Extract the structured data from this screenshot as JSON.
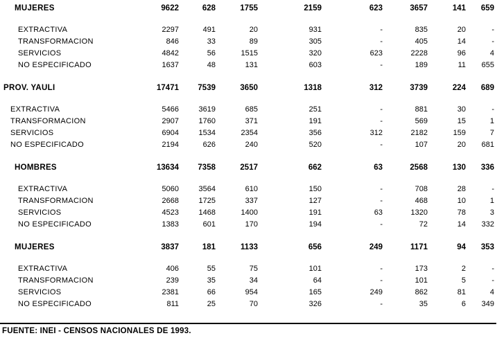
{
  "table": {
    "sections": [
      {
        "level": "gender",
        "header": {
          "label": "MUJERES",
          "values": [
            "9622",
            "628",
            "1755",
            "2159",
            "623",
            "3657",
            "141",
            "659"
          ]
        },
        "rows": [
          {
            "label": "EXTRACTIVA",
            "values": [
              "2297",
              "491",
              "20",
              "931",
              "-",
              "835",
              "20",
              "-"
            ]
          },
          {
            "label": "TRANSFORMACION",
            "values": [
              "846",
              "33",
              "89",
              "305",
              "-",
              "405",
              "14",
              "-"
            ]
          },
          {
            "label": "SERVICIOS",
            "values": [
              "4842",
              "56",
              "1515",
              "320",
              "623",
              "2228",
              "96",
              "4"
            ]
          },
          {
            "label": "NO ESPECIFICADO",
            "values": [
              "1637",
              "48",
              "131",
              "603",
              "-",
              "189",
              "11",
              "655"
            ]
          }
        ]
      },
      {
        "level": "province",
        "header": {
          "label": "PROV. YAULI",
          "values": [
            "17471",
            "7539",
            "3650",
            "1318",
            "312",
            "3739",
            "224",
            "689"
          ]
        },
        "rows": [
          {
            "label": "EXTRACTIVA",
            "values": [
              "5466",
              "3619",
              "685",
              "251",
              "-",
              "881",
              "30",
              "-"
            ]
          },
          {
            "label": "TRANSFORMACION",
            "values": [
              "2907",
              "1760",
              "371",
              "191",
              "-",
              "569",
              "15",
              "1"
            ]
          },
          {
            "label": "SERVICIOS",
            "values": [
              "6904",
              "1534",
              "2354",
              "356",
              "312",
              "2182",
              "159",
              "7"
            ]
          },
          {
            "label": "NO ESPECIFICADO",
            "values": [
              "2194",
              "626",
              "240",
              "520",
              "-",
              "107",
              "20",
              "681"
            ]
          }
        ]
      },
      {
        "level": "gender",
        "header": {
          "label": "HOMBRES",
          "values": [
            "13634",
            "7358",
            "2517",
            "662",
            "63",
            "2568",
            "130",
            "336"
          ]
        },
        "rows": [
          {
            "label": "EXTRACTIVA",
            "values": [
              "5060",
              "3564",
              "610",
              "150",
              "-",
              "708",
              "28",
              "-"
            ]
          },
          {
            "label": "TRANSFORMACION",
            "values": [
              "2668",
              "1725",
              "337",
              "127",
              "-",
              "468",
              "10",
              "1"
            ]
          },
          {
            "label": "SERVICIOS",
            "values": [
              "4523",
              "1468",
              "1400",
              "191",
              "63",
              "1320",
              "78",
              "3"
            ]
          },
          {
            "label": "NO ESPECIFICADO",
            "values": [
              "1383",
              "601",
              "170",
              "194",
              "-",
              "72",
              "14",
              "332"
            ]
          }
        ]
      },
      {
        "level": "gender",
        "header": {
          "label": "MUJERES",
          "values": [
            "3837",
            "181",
            "1133",
            "656",
            "249",
            "1171",
            "94",
            "353"
          ]
        },
        "rows": [
          {
            "label": "EXTRACTIVA",
            "values": [
              "406",
              "55",
              "75",
              "101",
              "-",
              "173",
              "2",
              "-"
            ]
          },
          {
            "label": "TRANSFORMACION",
            "values": [
              "239",
              "35",
              "34",
              "64",
              "-",
              "101",
              "5",
              "-"
            ]
          },
          {
            "label": "SERVICIOS",
            "values": [
              "2381",
              "66",
              "954",
              "165",
              "249",
              "862",
              "81",
              "4"
            ]
          },
          {
            "label": "NO ESPECIFICADO",
            "values": [
              "811",
              "25",
              "70",
              "326",
              "-",
              "35",
              "6",
              "349"
            ]
          }
        ]
      }
    ]
  },
  "footer": {
    "source": "FUENTE: INEI - CENSOS NACIONALES DE 1993."
  },
  "colors": {
    "text": "#000000",
    "background": "#ffffff",
    "divider": "#000000"
  }
}
